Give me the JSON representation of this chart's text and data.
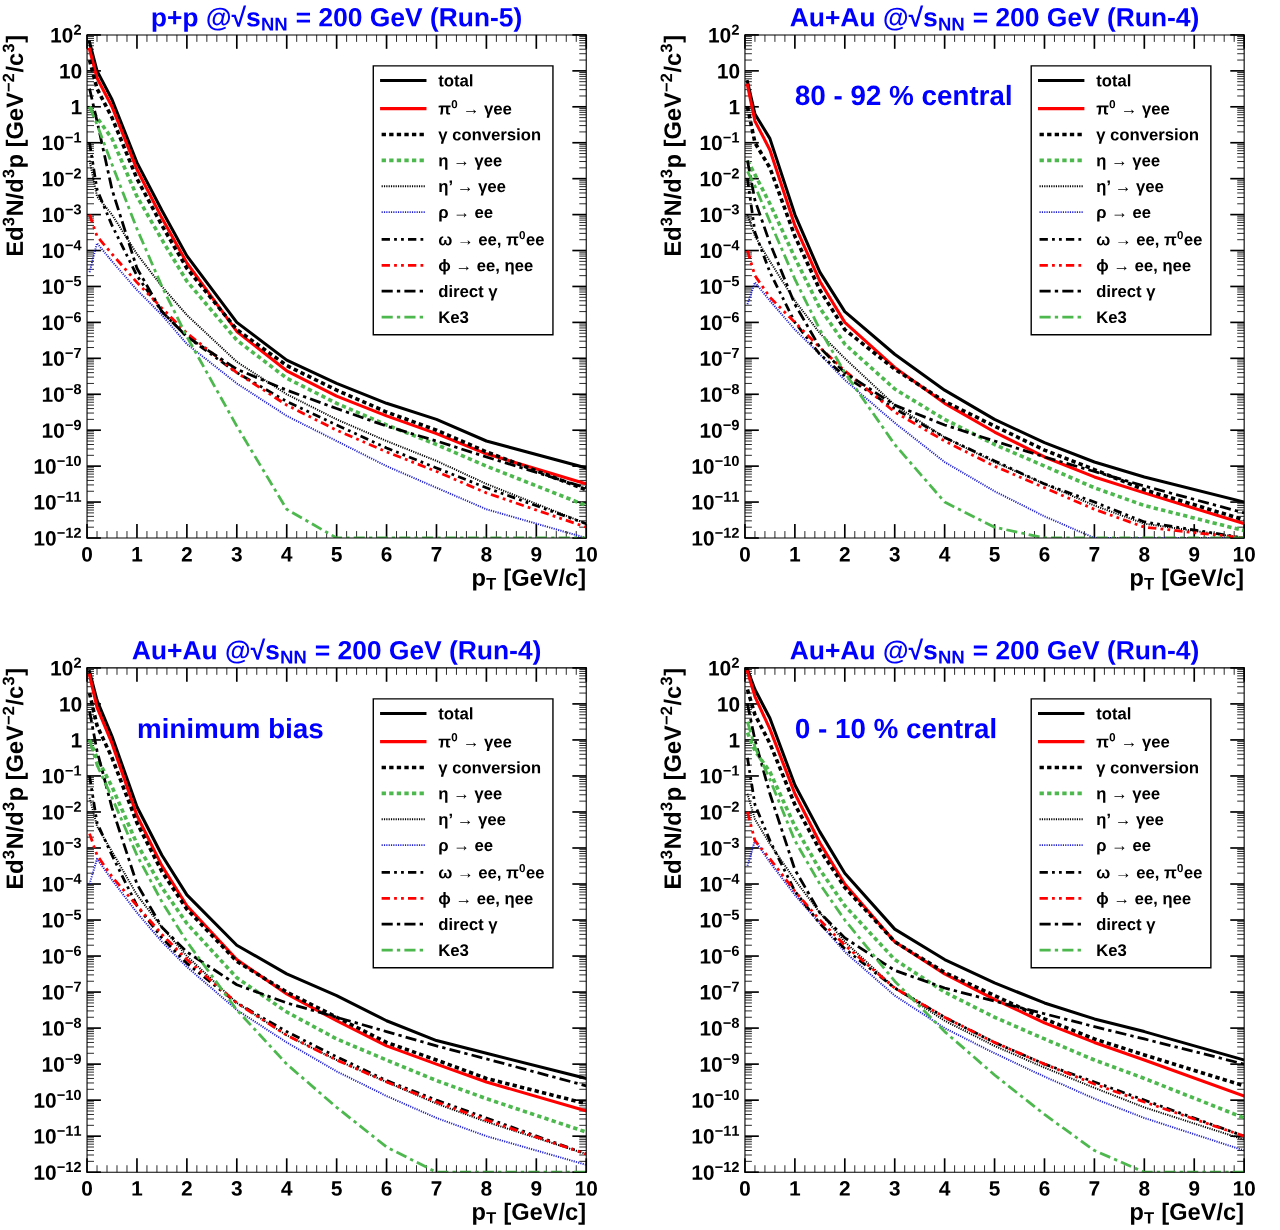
{
  "chart_data": [
    {
      "type": "line",
      "title": "p+p @√s$_{NN}$ = 200 GeV (Run-5)",
      "xlabel": "p$_{T}$ [GeV/c]",
      "ylabel": "Ed$^{3}$N/d$^{3}$p [GeV$^{−2}$/c$^{3}$]",
      "log": "y",
      "legend": "top right",
      "grid": false,
      "xlim": [
        0,
        10
      ],
      "xticks": [
        0,
        1,
        2,
        3,
        4,
        5,
        6,
        7,
        8,
        9,
        10
      ],
      "ylim": [
        1e-12,
        100
      ],
      "yticks": [
        {
          "value": 100,
          "label": "10$^{2}$"
        },
        10,
        1,
        {
          "value": 0.1,
          "label": "10$^{−1}$"
        },
        {
          "value": 0.01,
          "label": "10$^{−2}$"
        },
        {
          "value": 0.001,
          "label": "10$^{−3}$"
        },
        {
          "value": 0.0001,
          "label": "10$^{−4}$"
        },
        {
          "value": 1e-05,
          "label": "10$^{−5}$"
        },
        {
          "value": 1e-06,
          "label": "10$^{−6}$"
        },
        {
          "value": 1e-07,
          "label": "10$^{−7}$"
        },
        {
          "value": 1e-08,
          "label": "10$^{−8}$"
        },
        {
          "value": 1e-09,
          "label": "10$^{−9}$"
        },
        {
          "value": 1e-10,
          "label": "10$^{−10}$"
        },
        {
          "value": 1e-11,
          "label": "10$^{−11}$"
        },
        {
          "value": 1e-12,
          "label": "10$^{−12}$"
        }
      ],
      "x": [
        0.05,
        0.2,
        0.5,
        1,
        1.5,
        2,
        3,
        4,
        5,
        6,
        7,
        8,
        10
      ],
      "series": [
        {
          "name": "total",
          "color": "#000000",
          "line_style": "solid",
          "values": [
            63,
            10,
            1.6,
            0.028,
            0.0013,
            7.1e-05,
            1e-06,
            8.9e-08,
            2e-08,
            5.6e-09,
            2e-09,
            5e-10,
            8.9e-11
          ]
        },
        {
          "name": "π$^{0}$ → γee",
          "color": "#ff0000",
          "line_style": "solid",
          "values": [
            40,
            6.3,
            1,
            0.018,
            0.0008,
            4.5e-05,
            5.6e-07,
            4.5e-08,
            8.9e-09,
            2.5e-09,
            8e-10,
            2.2e-10,
            3.2e-11
          ]
        },
        {
          "name": "γ conversion",
          "color": "#000000",
          "line_style": "dotted",
          "values": [
            20,
            3.2,
            0.5,
            0.01,
            0.0005,
            3.2e-05,
            6.3e-07,
            6.3e-08,
            1.3e-08,
            3.2e-09,
            1e-09,
            2.5e-10,
            2.2e-11
          ]
        },
        {
          "name": "η → γee",
          "color": "#4db84d",
          "line_style": "dotted",
          "values": [
            1,
            0.5,
            0.13,
            0.0032,
            0.0002,
            1.4e-05,
            3.2e-07,
            2.8e-08,
            5.6e-09,
            1.4e-09,
            4e-10,
            1e-10,
            8e-12
          ]
        },
        {
          "name": "η’ → γee",
          "color": "#000000",
          "line_style": "finedotted",
          "values": [
            0.032,
            0.0032,
            0.001,
            8e-05,
            1e-05,
            1.6e-06,
            8e-08,
            1e-08,
            2e-09,
            5e-10,
            1.4e-10,
            3.2e-11,
            2.5e-12
          ]
        },
        {
          "name": "ρ → ee",
          "color": "#1f1fd0",
          "line_style": "finedotted",
          "values": [
            2.5e-05,
            0.00016,
            5e-05,
            8e-06,
            1.6e-06,
            2.5e-07,
            2e-08,
            2.5e-09,
            5e-10,
            1e-10,
            2.5e-11,
            6.3e-12,
            1e-12
          ]
        },
        {
          "name": "ω → ee, π$^{0}$ee",
          "color": "#000000",
          "line_style": "dashdotdot",
          "values": [
            0.1,
            0.005,
            0.0005,
            2e-05,
            2e-06,
            4e-07,
            4e-08,
            6.3e-09,
            1.4e-09,
            3.2e-10,
            8.9e-11,
            2.5e-11,
            2.5e-12
          ]
        },
        {
          "name": "ϕ → ee, ηee",
          "color": "#ff0000",
          "line_style": "dashdotdot",
          "values": [
            0.001,
            0.00025,
            8e-05,
            1.3e-05,
            2.5e-06,
            5e-07,
            4e-08,
            5e-09,
            1e-09,
            2.5e-10,
            7.1e-11,
            1.8e-11,
            2e-12
          ]
        },
        {
          "name": "direct γ",
          "color": "#000000",
          "line_style": "dashdot",
          "values": [
            3.2,
            0.4,
            0.005,
            3.2e-05,
            2e-06,
            4e-07,
            5e-08,
            1.3e-08,
            4e-09,
            1.3e-09,
            5e-10,
            1.8e-10,
            2.5e-11
          ]
        },
        {
          "name": "Ke3",
          "color": "#4db84d",
          "line_style": "dashdot",
          "values": [
            1,
            0.32,
            0.025,
            0.0004,
            1e-05,
            4e-07,
            1.3e-09,
            6.3e-12,
            1e-12,
            1e-12,
            1e-12,
            1e-12,
            1e-12
          ]
        }
      ]
    },
    {
      "type": "line",
      "title": "Au+Au @√s$_{NN}$ = 200 GeV (Run-4)",
      "annotations": [
        "80 - 92 % central"
      ],
      "xlabel": "p$_{T}$ [GeV/c]",
      "ylabel": "Ed$^{3}$N/d$^{3}$p [GeV$^{−2}$/c$^{3}$]",
      "log": "y",
      "legend": "top right",
      "grid": false,
      "xlim": [
        0,
        10
      ],
      "xticks": [
        0,
        1,
        2,
        3,
        4,
        5,
        6,
        7,
        8,
        9,
        10
      ],
      "ylim": [
        1e-12,
        100
      ],
      "yticks": [
        {
          "value": 100,
          "label": "10$^{2}$"
        },
        10,
        1,
        {
          "value": 0.1,
          "label": "10$^{−1}$"
        },
        {
          "value": 0.01,
          "label": "10$^{−2}$"
        },
        {
          "value": 0.001,
          "label": "10$^{−3}$"
        },
        {
          "value": 0.0001,
          "label": "10$^{−4}$"
        },
        {
          "value": 1e-05,
          "label": "10$^{−5}$"
        },
        {
          "value": 1e-06,
          "label": "10$^{−6}$"
        },
        {
          "value": 1e-07,
          "label": "10$^{−7}$"
        },
        {
          "value": 1e-08,
          "label": "10$^{−8}$"
        },
        {
          "value": 1e-09,
          "label": "10$^{−9}$"
        },
        {
          "value": 1e-10,
          "label": "10$^{−10}$"
        },
        {
          "value": 1e-11,
          "label": "10$^{−11}$"
        },
        {
          "value": 1e-12,
          "label": "10$^{−12}$"
        }
      ],
      "x": [
        0.05,
        0.2,
        0.5,
        1,
        1.5,
        2,
        3,
        4,
        5,
        6,
        7,
        8,
        10
      ],
      "series": [
        {
          "name": "total",
          "color": "#000000",
          "line_style": "solid",
          "values": [
            5,
            0.63,
            0.13,
            0.001,
            2.5e-05,
            2e-06,
            1.3e-07,
            1.3e-08,
            2e-09,
            4.5e-10,
            1.3e-10,
            5e-11,
            1e-11
          ]
        },
        {
          "name": "π$^{0}$ → γee",
          "color": "#ff0000",
          "line_style": "solid",
          "values": [
            4,
            0.4,
            0.063,
            0.0005,
            1.4e-05,
            1e-06,
            5.6e-08,
            5.6e-09,
            8.9e-10,
            1.8e-10,
            5e-11,
            1.8e-11,
            2.5e-12
          ]
        },
        {
          "name": "γ conversion",
          "color": "#000000",
          "line_style": "dotted",
          "values": [
            1,
            0.1,
            0.02,
            0.00025,
            8e-06,
            6.3e-07,
            5e-08,
            6.3e-09,
            1.3e-09,
            2.8e-10,
            8e-11,
            2.2e-11,
            3.2e-12
          ]
        },
        {
          "name": "η → γee",
          "color": "#4db84d",
          "line_style": "dotted",
          "values": [
            0.032,
            0.013,
            0.002,
            6.3e-05,
            2.5e-06,
            2.5e-07,
            1.4e-08,
            2e-09,
            4e-10,
            1e-10,
            2.5e-11,
            8e-12,
            1.6e-12
          ]
        },
        {
          "name": "η’ → γee",
          "color": "#000000",
          "line_style": "finedotted",
          "values": [
            0.001,
            0.00025,
            5e-05,
            4e-06,
            5e-07,
            1e-07,
            5e-09,
            6.3e-10,
            1.3e-10,
            3.2e-11,
            8e-12,
            2.5e-12,
            1e-12
          ]
        },
        {
          "name": "ρ → ee",
          "color": "#1f1fd0",
          "line_style": "finedotted",
          "values": [
            3.2e-06,
            1.3e-05,
            4e-06,
            6.3e-07,
            1.3e-07,
            2.5e-08,
            1.6e-09,
            1.3e-10,
            2e-11,
            4e-12,
            1e-12,
            1e-12,
            1e-12
          ]
        },
        {
          "name": "ω → ee, π$^{0}$ee",
          "color": "#000000",
          "line_style": "dashdotdot",
          "values": [
            0.01,
            0.00032,
            2.5e-05,
            1e-06,
            1.3e-07,
            3.2e-08,
            4e-09,
            6.3e-10,
            1.4e-10,
            3.2e-11,
            1e-11,
            2.8e-12,
            1e-12
          ]
        },
        {
          "name": "ϕ → ee, ηee",
          "color": "#ff0000",
          "line_style": "dashdotdot",
          "values": [
            0.0001,
            2e-05,
            5e-06,
            1e-06,
            2e-07,
            4.5e-08,
            3.2e-09,
            5e-10,
            1e-10,
            2.5e-11,
            6.3e-12,
            2e-12,
            1e-12
          ]
        },
        {
          "name": "direct γ",
          "color": "#000000",
          "line_style": "dashdot",
          "values": [
            0.032,
            0.0025,
            0.00016,
            3.2e-06,
            2e-07,
            4e-08,
            5e-09,
            1.4e-09,
            5e-10,
            1.8e-10,
            7.1e-11,
            2.8e-11,
            5e-12
          ]
        },
        {
          "name": "Ke3",
          "color": "#4db84d",
          "line_style": "dashdot",
          "values": [
            0.016,
            0.0063,
            0.00063,
            1.6e-05,
            6.3e-07,
            4e-08,
            4e-10,
            1e-11,
            2e-12,
            1e-12,
            1e-12,
            1e-12,
            1e-12
          ]
        }
      ]
    },
    {
      "type": "line",
      "title": "Au+Au @√s$_{NN}$ = 200 GeV (Run-4)",
      "annotations": [
        "minimum bias"
      ],
      "xlabel": "p$_{T}$ [GeV/c]",
      "ylabel": "Ed$^{3}$N/d$^{3}$p [GeV$^{−2}$/c$^{3}$]",
      "log": "y",
      "legend": "top right",
      "grid": false,
      "xlim": [
        0,
        10
      ],
      "xticks": [
        0,
        1,
        2,
        3,
        4,
        5,
        6,
        7,
        8,
        9,
        10
      ],
      "ylim": [
        1e-12,
        100
      ],
      "yticks": [
        {
          "value": 100,
          "label": "10$^{2}$"
        },
        10,
        1,
        {
          "value": 0.1,
          "label": "10$^{−1}$"
        },
        {
          "value": 0.01,
          "label": "10$^{−2}$"
        },
        {
          "value": 0.001,
          "label": "10$^{−3}$"
        },
        {
          "value": 0.0001,
          "label": "10$^{−4}$"
        },
        {
          "value": 1e-05,
          "label": "10$^{−5}$"
        },
        {
          "value": 1e-06,
          "label": "10$^{−6}$"
        },
        {
          "value": 1e-07,
          "label": "10$^{−7}$"
        },
        {
          "value": 1e-08,
          "label": "10$^{−8}$"
        },
        {
          "value": 1e-09,
          "label": "10$^{−9}$"
        },
        {
          "value": 1e-10,
          "label": "10$^{−10}$"
        },
        {
          "value": 1e-11,
          "label": "10$^{−11}$"
        },
        {
          "value": 1e-12,
          "label": "10$^{−12}$"
        }
      ],
      "x": [
        0.05,
        0.2,
        0.5,
        1,
        1.5,
        2,
        3,
        4,
        5,
        6,
        7,
        8,
        10
      ],
      "series": [
        {
          "name": "total",
          "color": "#000000",
          "line_style": "solid",
          "values": [
            79,
            12.6,
            1.26,
            0.014,
            0.00063,
            5e-05,
            2e-06,
            3.2e-07,
            8e-08,
            1.6e-08,
            4.5e-09,
            2e-09,
            4e-10
          ]
        },
        {
          "name": "π$^{0}$ → γee",
          "color": "#ff0000",
          "line_style": "solid",
          "values": [
            63,
            8,
            0.8,
            0.008,
            0.00032,
            2.5e-05,
            8e-07,
            8.9e-08,
            1.6e-08,
            3.2e-09,
            1e-09,
            3.2e-10,
            5e-11
          ]
        },
        {
          "name": "γ conversion",
          "color": "#000000",
          "line_style": "dotted",
          "values": [
            20,
            2.5,
            0.32,
            0.005,
            0.00022,
            2e-05,
            7.1e-07,
            1e-07,
            2e-08,
            4e-09,
            1.3e-09,
            4e-10,
            8e-11
          ]
        },
        {
          "name": "η → γee",
          "color": "#4db84d",
          "line_style": "dotted",
          "values": [
            1,
            0.32,
            0.05,
            0.0013,
            8e-05,
            8e-06,
            2.5e-07,
            2.8e-08,
            5e-09,
            1.3e-09,
            3.5e-10,
            1.1e-10,
            1.3e-11
          ]
        },
        {
          "name": "η’ → γee",
          "color": "#000000",
          "line_style": "finedotted",
          "values": [
            0.025,
            0.004,
            0.0008,
            5e-05,
            6.3e-06,
            1e-06,
            5e-08,
            6.3e-09,
            1.3e-09,
            3.2e-10,
            8e-11,
            2.5e-11,
            3.2e-12
          ]
        },
        {
          "name": "ρ → ee",
          "color": "#1f1fd0",
          "line_style": "finedotted",
          "values": [
            0.0001,
            0.0005,
            0.00013,
            1.6e-05,
            2.5e-06,
            5e-07,
            3.2e-08,
            4e-09,
            6.3e-10,
            1.3e-10,
            3.2e-11,
            1e-11,
            1.6e-12
          ]
        },
        {
          "name": "ω → ee, π$^{0}$ee",
          "color": "#000000",
          "line_style": "dashdotdot",
          "values": [
            0.1,
            0.005,
            0.00063,
            2.5e-05,
            3.2e-06,
            6.3e-07,
            5e-08,
            8e-09,
            1.6e-09,
            3.5e-10,
            1e-10,
            3.2e-11,
            3.2e-12
          ]
        },
        {
          "name": "ϕ → ee, ηee",
          "color": "#ff0000",
          "line_style": "dashdotdot",
          "values": [
            0.0025,
            0.00063,
            0.00016,
            2.5e-05,
            4e-06,
            8e-07,
            5e-08,
            6.3e-09,
            1.3e-09,
            3.2e-10,
            8.9e-11,
            2.8e-11,
            3.2e-12
          ]
        },
        {
          "name": "direct γ",
          "color": "#000000",
          "line_style": "dashdot",
          "values": [
            6.3,
            0.5,
            0.013,
            0.0001,
            6.3e-06,
            1.3e-06,
            1.6e-07,
            5e-08,
            2e-08,
            8e-09,
            3.2e-09,
            1.4e-09,
            2.5e-10
          ]
        },
        {
          "name": "Ke3",
          "color": "#4db84d",
          "line_style": "dashdot",
          "values": [
            1,
            0.2,
            0.025,
            0.00063,
            3.2e-05,
            2.5e-06,
            3.2e-08,
            1e-09,
            6.3e-11,
            5e-12,
            1e-12,
            1e-12,
            1e-12
          ]
        }
      ]
    },
    {
      "type": "line",
      "title": "Au+Au @√s$_{NN}$ = 200 GeV (Run-4)",
      "annotations": [
        "0 - 10 % central"
      ],
      "xlabel": "p$_{T}$ [GeV/c]",
      "ylabel": "Ed$^{3}$N/d$^{3}$p [GeV$^{−2}$/c$^{3}$]",
      "log": "y",
      "legend": "top right",
      "grid": false,
      "xlim": [
        0,
        10
      ],
      "xticks": [
        0,
        1,
        2,
        3,
        4,
        5,
        6,
        7,
        8,
        9,
        10
      ],
      "ylim": [
        1e-12,
        100
      ],
      "yticks": [
        {
          "value": 100,
          "label": "10$^{2}$"
        },
        10,
        1,
        {
          "value": 0.1,
          "label": "10$^{−1}$"
        },
        {
          "value": 0.01,
          "label": "10$^{−2}$"
        },
        {
          "value": 0.001,
          "label": "10$^{−3}$"
        },
        {
          "value": 0.0001,
          "label": "10$^{−4}$"
        },
        {
          "value": 1e-05,
          "label": "10$^{−5}$"
        },
        {
          "value": 1e-06,
          "label": "10$^{−6}$"
        },
        {
          "value": 1e-07,
          "label": "10$^{−7}$"
        },
        {
          "value": 1e-08,
          "label": "10$^{−8}$"
        },
        {
          "value": 1e-09,
          "label": "10$^{−9}$"
        },
        {
          "value": 1e-10,
          "label": "10$^{−10}$"
        },
        {
          "value": 1e-11,
          "label": "10$^{−11}$"
        },
        {
          "value": 1e-12,
          "label": "10$^{−12}$"
        }
      ],
      "x": [
        0.05,
        0.2,
        0.5,
        1,
        1.5,
        2,
        3,
        4,
        5,
        6,
        7,
        8,
        10
      ],
      "series": [
        {
          "name": "total",
          "color": "#000000",
          "line_style": "solid",
          "values": [
            90,
            25,
            4,
            0.056,
            0.0028,
            0.0002,
            5.6e-06,
            8e-07,
            1.8e-07,
            5e-08,
            1.8e-08,
            8e-09,
            1.3e-09
          ]
        },
        {
          "name": "π$^{0}$ → γee",
          "color": "#ff0000",
          "line_style": "solid",
          "values": [
            79,
            16,
            2,
            0.032,
            0.0014,
            0.0001,
            2.5e-06,
            3.2e-07,
            6.3e-08,
            1.4e-08,
            4e-09,
            1.3e-09,
            1.3e-10
          ]
        },
        {
          "name": "γ conversion",
          "color": "#000000",
          "line_style": "dotted",
          "values": [
            25,
            5,
            0.8,
            0.016,
            0.00089,
            8e-05,
            2.5e-06,
            3.5e-07,
            8e-08,
            1.8e-08,
            5e-09,
            1.8e-09,
            2.5e-10
          ]
        },
        {
          "name": "η → γee",
          "color": "#4db84d",
          "line_style": "dotted",
          "values": [
            1.6,
            0.5,
            0.13,
            0.004,
            0.00025,
            2.5e-05,
            8e-07,
            1e-07,
            2e-08,
            5e-09,
            1.3e-09,
            4e-10,
            3.2e-11
          ]
        },
        {
          "name": "η’ → γee",
          "color": "#000000",
          "line_style": "finedotted",
          "values": [
            0.032,
            0.0063,
            0.0013,
            0.00013,
            1.6e-05,
            2.5e-06,
            1.3e-07,
            1.6e-08,
            3.2e-09,
            8e-10,
            2.2e-10,
            6.3e-11,
            8e-12
          ]
        },
        {
          "name": "ρ → ee",
          "color": "#1f1fd0",
          "line_style": "finedotted",
          "values": [
            0.00032,
            0.0016,
            0.0004,
            5e-05,
            8e-06,
            1.3e-06,
            8e-08,
            1e-08,
            2e-09,
            4.5e-10,
            1.1e-10,
            3.2e-11,
            4e-12
          ]
        },
        {
          "name": "ω → ee, π$^{0}$ee",
          "color": "#000000",
          "line_style": "dashdotdot",
          "values": [
            0.32,
            0.016,
            0.0016,
            6.3e-05,
            8e-06,
            1.6e-06,
            1.3e-07,
            2e-08,
            4e-09,
            1e-09,
            3.2e-10,
            1e-10,
            1e-11
          ]
        },
        {
          "name": "ϕ → ee, ηee",
          "color": "#ff0000",
          "line_style": "dashdotdot",
          "values": [
            0.01,
            0.0016,
            0.0005,
            6.3e-05,
            1e-05,
            2e-06,
            1.3e-07,
            2e-08,
            4e-09,
            1e-09,
            2.8e-10,
            8.9e-11,
            1e-11
          ]
        },
        {
          "name": "direct γ",
          "color": "#000000",
          "line_style": "dashdot",
          "values": [
            10,
            1,
            0.032,
            0.00025,
            1.6e-05,
            3.2e-06,
            4e-07,
            1.3e-07,
            5.6e-08,
            2.5e-08,
            1.1e-08,
            5e-09,
            1e-09
          ]
        },
        {
          "name": "Ke3",
          "color": "#4db84d",
          "line_style": "dashdot",
          "values": [
            3.2,
            0.63,
            0.08,
            0.0016,
            0.0001,
            1e-05,
            2e-07,
            8e-09,
            5e-10,
            4e-11,
            4e-12,
            1e-12,
            1e-12
          ]
        }
      ]
    }
  ]
}
